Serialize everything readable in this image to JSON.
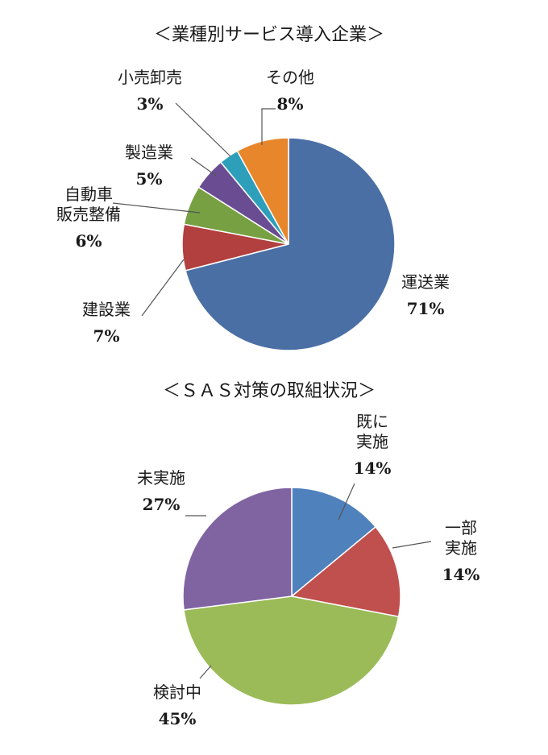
{
  "chart_data": [
    {
      "type": "pie",
      "title": "＜業種別サービス導入企業＞",
      "slices": [
        {
          "label_lines": [
            "運送業"
          ],
          "value": 71,
          "value_label": "71%",
          "color": "#4a6fa5"
        },
        {
          "label_lines": [
            "建設業"
          ],
          "value": 7,
          "value_label": "7%",
          "color": "#b2403e"
        },
        {
          "label_lines": [
            "自動車",
            "販売整備"
          ],
          "value": 6,
          "value_label": "6%",
          "color": "#77a043"
        },
        {
          "label_lines": [
            "製造業"
          ],
          "value": 5,
          "value_label": "5%",
          "color": "#6a4c93"
        },
        {
          "label_lines": [
            "小売卸売"
          ],
          "value": 3,
          "value_label": "3%",
          "color": "#2e9fba"
        },
        {
          "label_lines": [
            "その他"
          ],
          "value": 8,
          "value_label": "8%",
          "color": "#e8862b"
        }
      ]
    },
    {
      "type": "pie",
      "title": "＜ＳＡＳ対策の取組状況＞",
      "slices": [
        {
          "label_lines": [
            "既に",
            "実施"
          ],
          "value": 14,
          "value_label": "14%",
          "color": "#4f81bd"
        },
        {
          "label_lines": [
            "一部",
            "実施"
          ],
          "value": 14,
          "value_label": "14%",
          "color": "#c0504d"
        },
        {
          "label_lines": [
            "検討中"
          ],
          "value": 45,
          "value_label": "45%",
          "color": "#9bbb59"
        },
        {
          "label_lines": [
            "未実施"
          ],
          "value": 27,
          "value_label": "27%",
          "color": "#8064a2"
        }
      ]
    }
  ]
}
